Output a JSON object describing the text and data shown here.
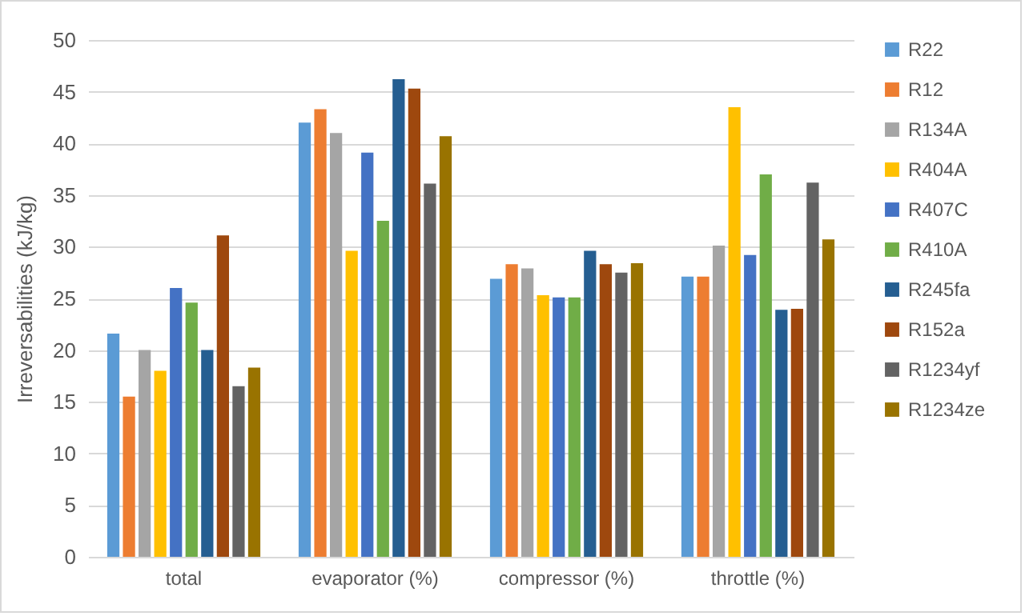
{
  "chart_data": {
    "type": "bar",
    "ylabel": "Irreversabilities (kJ/kg)",
    "categories": [
      "total",
      "evaporator (%)",
      "compressor (%)",
      "throttle (%)"
    ],
    "series": [
      {
        "name": "R22",
        "color": "#5b9bd5",
        "values": [
          21.6,
          42,
          26.9,
          27.1
        ]
      },
      {
        "name": "R12",
        "color": "#ed7d31",
        "values": [
          15.5,
          43.3,
          28.3,
          27.1
        ]
      },
      {
        "name": "R134A",
        "color": "#a5a5a5",
        "values": [
          20,
          41,
          27.9,
          30.1
        ]
      },
      {
        "name": "R404A",
        "color": "#ffc000",
        "values": [
          18,
          29.6,
          25.3,
          43.5
        ]
      },
      {
        "name": "R407C",
        "color": "#4472c4",
        "values": [
          26,
          39.1,
          25.1,
          29.2
        ]
      },
      {
        "name": "R410A",
        "color": "#70ad47",
        "values": [
          24.6,
          32.5,
          25.1,
          37
        ]
      },
      {
        "name": "R245fa",
        "color": "#255e91",
        "values": [
          20,
          46.2,
          29.6,
          23.9
        ]
      },
      {
        "name": "R152a",
        "color": "#9e480e",
        "values": [
          31.1,
          45.3,
          28.3,
          24
        ]
      },
      {
        "name": "R1234yf",
        "color": "#636363",
        "values": [
          16.5,
          36.1,
          27.5,
          36.2
        ]
      },
      {
        "name": "R1234ze",
        "color": "#997300",
        "values": [
          18.3,
          40.7,
          28.4,
          30.7
        ]
      }
    ],
    "ylim": [
      0,
      50
    ],
    "yticks": [
      0,
      5,
      10,
      15,
      20,
      25,
      30,
      35,
      40,
      45,
      50
    ],
    "grid": "y",
    "legend": "right"
  }
}
